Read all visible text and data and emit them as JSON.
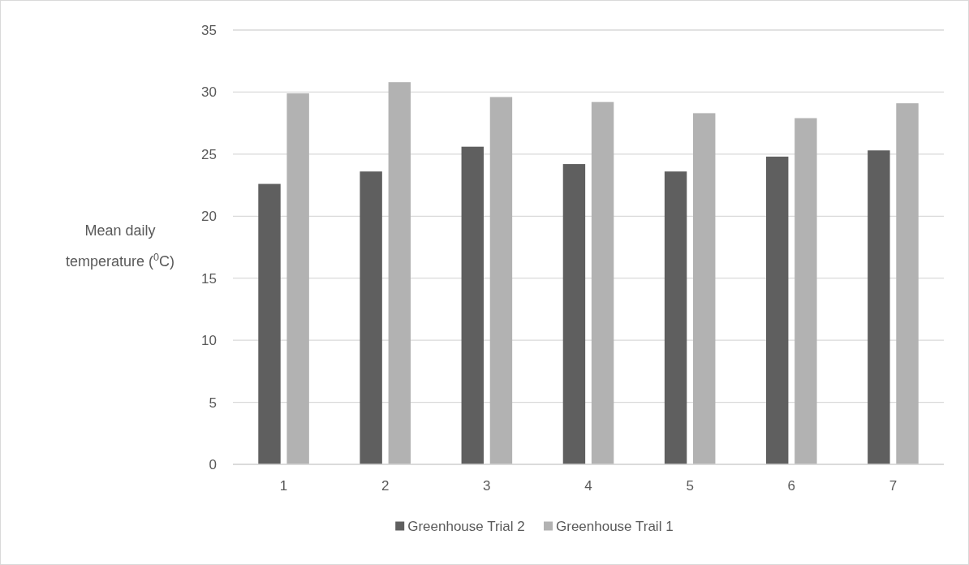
{
  "chart_data": {
    "type": "bar",
    "ylabel": "Mean daily temperature ($^{0}$C)",
    "categories": [
      "1",
      "2",
      "3",
      "4",
      "5",
      "6",
      "7"
    ],
    "series": [
      {
        "name": "Greenhouse Trial 2",
        "color": "#5f5f5f",
        "values": [
          22.6,
          23.6,
          25.6,
          24.2,
          23.6,
          24.8,
          25.3
        ]
      },
      {
        "name": "Greenhouse Trail 1",
        "color": "#b2b2b2",
        "values": [
          29.9,
          30.8,
          29.6,
          29.2,
          28.3,
          27.9,
          29.1
        ]
      }
    ],
    "ylim": [
      0,
      35
    ],
    "yticks": [
      0,
      5,
      10,
      15,
      20,
      25,
      30,
      35
    ],
    "grid": "y",
    "legend": "bottom"
  }
}
